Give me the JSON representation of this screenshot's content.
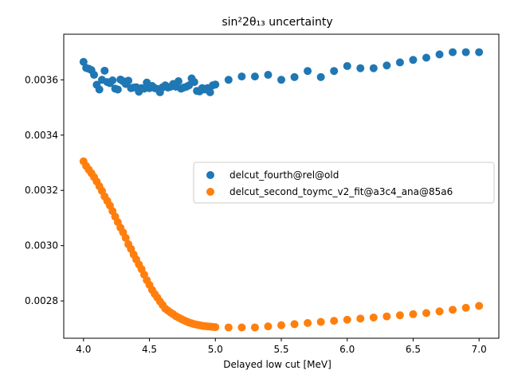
{
  "chart_data": {
    "type": "scatter",
    "title": "sin²2θ₁₃ uncertainty",
    "xlabel": "Delayed low cut [MeV]",
    "ylabel": "",
    "xlim": [
      3.85,
      7.15
    ],
    "ylim": [
      0.002665,
      0.003765
    ],
    "x_ticks": [
      4.0,
      4.5,
      5.0,
      5.5,
      6.0,
      6.5,
      7.0
    ],
    "x_tick_labels": [
      "4.0",
      "4.5",
      "5.0",
      "5.5",
      "6.0",
      "6.5",
      "7.0"
    ],
    "y_ticks": [
      0.0028,
      0.003,
      0.0032,
      0.0034,
      0.0036
    ],
    "y_tick_labels": [
      "0.0028",
      "0.0030",
      "0.0032",
      "0.0034",
      "0.0036"
    ],
    "grid": false,
    "legend_position": "center-right",
    "series": [
      {
        "name": "delcut_fourth@rel@old",
        "color": "#1f77b4",
        "x": [
          4.0,
          4.02,
          4.04,
          4.06,
          4.08,
          4.1,
          4.12,
          4.14,
          4.16,
          4.18,
          4.2,
          4.22,
          4.24,
          4.26,
          4.28,
          4.3,
          4.32,
          4.34,
          4.36,
          4.38,
          4.4,
          4.42,
          4.44,
          4.46,
          4.48,
          4.5,
          4.52,
          4.54,
          4.56,
          4.58,
          4.6,
          4.62,
          4.64,
          4.66,
          4.68,
          4.7,
          4.72,
          4.74,
          4.76,
          4.78,
          4.8,
          4.82,
          4.84,
          4.86,
          4.88,
          4.9,
          4.92,
          4.94,
          4.96,
          4.98,
          5.0,
          5.1,
          5.2,
          5.3,
          5.4,
          5.5,
          5.6,
          5.7,
          5.8,
          5.9,
          6.0,
          6.1,
          6.2,
          6.3,
          6.4,
          6.5,
          6.6,
          6.7,
          6.8,
          6.9,
          7.0
        ],
        "y": [
          0.003665,
          0.003643,
          0.00364,
          0.003635,
          0.003618,
          0.003582,
          0.003565,
          0.0036,
          0.003633,
          0.003592,
          0.003588,
          0.003598,
          0.003568,
          0.003565,
          0.003601,
          0.003595,
          0.003585,
          0.003597,
          0.00357,
          0.003572,
          0.003573,
          0.003557,
          0.00357,
          0.003568,
          0.00359,
          0.00357,
          0.003578,
          0.00357,
          0.003567,
          0.003555,
          0.003573,
          0.00358,
          0.003572,
          0.003575,
          0.003585,
          0.003575,
          0.003595,
          0.003568,
          0.003572,
          0.003575,
          0.00358,
          0.003605,
          0.003592,
          0.00356,
          0.003558,
          0.00357,
          0.003565,
          0.00357,
          0.003555,
          0.00358,
          0.003583,
          0.0036,
          0.003612,
          0.003612,
          0.003618,
          0.0036,
          0.00361,
          0.003632,
          0.00361,
          0.003632,
          0.00365,
          0.003642,
          0.003642,
          0.003652,
          0.003663,
          0.003672,
          0.00368,
          0.003692,
          0.0037,
          0.0037,
          0.0037
        ]
      },
      {
        "name": "delcut_second_toymc_v2_fit@a3c4_ana@85a6",
        "color": "#ff7f0e",
        "x": [
          4.0,
          4.02,
          4.04,
          4.06,
          4.08,
          4.1,
          4.12,
          4.14,
          4.16,
          4.18,
          4.2,
          4.22,
          4.24,
          4.26,
          4.28,
          4.3,
          4.32,
          4.34,
          4.36,
          4.38,
          4.4,
          4.42,
          4.44,
          4.46,
          4.48,
          4.5,
          4.52,
          4.54,
          4.56,
          4.58,
          4.6,
          4.62,
          4.64,
          4.66,
          4.68,
          4.7,
          4.72,
          4.74,
          4.76,
          4.78,
          4.8,
          4.82,
          4.84,
          4.86,
          4.88,
          4.9,
          4.92,
          4.94,
          4.96,
          4.98,
          5.0,
          5.1,
          5.2,
          5.3,
          5.4,
          5.5,
          5.6,
          5.7,
          5.8,
          5.9,
          6.0,
          6.1,
          6.2,
          6.3,
          6.4,
          6.5,
          6.6,
          6.7,
          6.8,
          6.9,
          7.0
        ],
        "y": [
          0.003305,
          0.003288,
          0.003275,
          0.003262,
          0.003248,
          0.003232,
          0.003215,
          0.003198,
          0.003178,
          0.003162,
          0.003145,
          0.003125,
          0.003105,
          0.003085,
          0.003065,
          0.003048,
          0.003028,
          0.003005,
          0.002988,
          0.002968,
          0.00295,
          0.002932,
          0.002915,
          0.002895,
          0.002875,
          0.002858,
          0.00284,
          0.002825,
          0.002812,
          0.002798,
          0.002785,
          0.002772,
          0.002765,
          0.002758,
          0.002752,
          0.002745,
          0.00274,
          0.002735,
          0.00273,
          0.002726,
          0.002722,
          0.002719,
          0.002716,
          0.002714,
          0.002712,
          0.00271,
          0.002709,
          0.002708,
          0.002707,
          0.002706,
          0.002705,
          0.002704,
          0.002704,
          0.002704,
          0.002708,
          0.002712,
          0.002716,
          0.00272,
          0.002724,
          0.002728,
          0.002732,
          0.002736,
          0.00274,
          0.002744,
          0.002748,
          0.002752,
          0.002756,
          0.002762,
          0.002768,
          0.002775,
          0.002782
        ]
      }
    ]
  }
}
